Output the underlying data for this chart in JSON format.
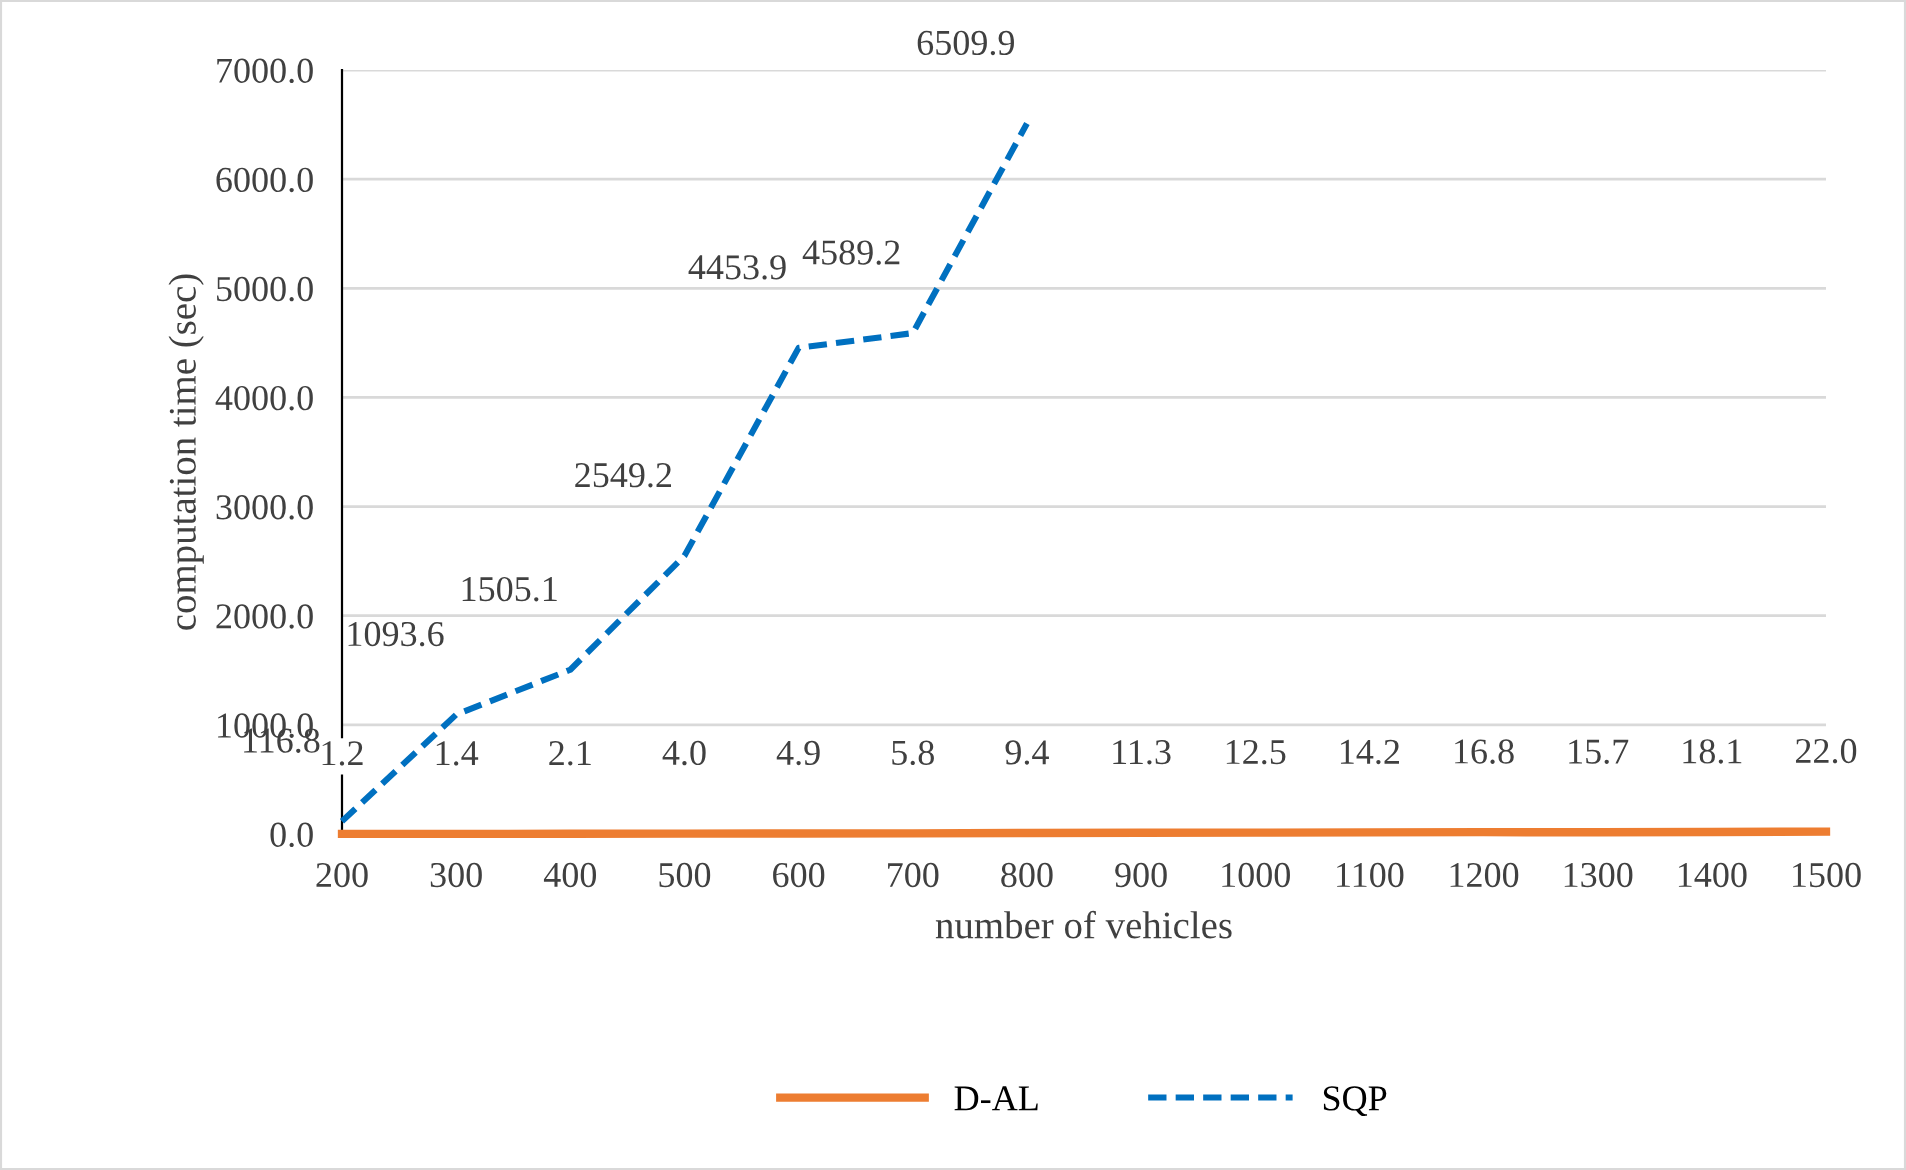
{
  "chart_data": {
    "type": "line",
    "xlabel": "number of vehicles",
    "ylabel": "computation time (sec)",
    "categories": [
      "200",
      "300",
      "400",
      "500",
      "600",
      "700",
      "800",
      "900",
      "1000",
      "1100",
      "1200",
      "1300",
      "1400",
      "1500"
    ],
    "series": [
      {
        "name": "D-AL",
        "color": "#ed7d31",
        "line_style": "solid",
        "values": [
          1.2,
          1.4,
          2.1,
          4.0,
          4.9,
          5.8,
          9.4,
          11.3,
          12.5,
          14.2,
          16.8,
          15.7,
          18.1,
          22.0
        ],
        "value_labels": [
          "1.2",
          "1.4",
          "2.1",
          "4.0",
          "4.9",
          "5.8",
          "9.4",
          "11.3",
          "12.5",
          "14.2",
          "16.8",
          "15.7",
          "18.1",
          "22.0"
        ]
      },
      {
        "name": "SQP",
        "color": "#0070c0",
        "line_style": "dashed",
        "values": [
          116.8,
          1093.6,
          1505.1,
          2549.2,
          4453.9,
          4589.2,
          6509.9,
          null,
          null,
          null,
          null,
          null,
          null,
          null
        ],
        "value_labels": [
          "116.8",
          "1093.6",
          "1505.1",
          "2549.2",
          "4453.9",
          "4589.2",
          "6509.9",
          null,
          null,
          null,
          null,
          null,
          null,
          null
        ]
      }
    ],
    "ylim": [
      0,
      7000
    ],
    "yticks": [
      {
        "value": 0,
        "label": "0.0"
      },
      {
        "value": 1000,
        "label": "1000.0"
      },
      {
        "value": 2000,
        "label": "2000.0"
      },
      {
        "value": 3000,
        "label": "3000.0"
      },
      {
        "value": 4000,
        "label": "4000.0"
      },
      {
        "value": 5000,
        "label": "5000.0"
      },
      {
        "value": 6000,
        "label": "6000.0"
      },
      {
        "value": 7000,
        "label": "7000.0"
      }
    ],
    "grid": "y",
    "legend": "bottom",
    "marker": "none"
  }
}
